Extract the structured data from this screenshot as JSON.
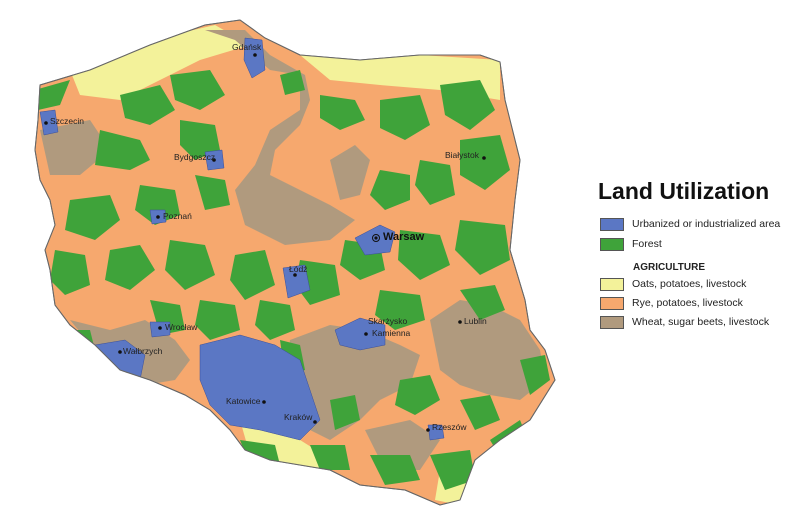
{
  "legend": {
    "title": "Land Utilization",
    "urban": {
      "label": "Urbanized or industrialized area",
      "color": "#5b77c4"
    },
    "forest": {
      "label": "Forest",
      "color": "#3fa33a"
    },
    "agriculture_heading": "AGRICULTURE",
    "oats": {
      "label": "Oats, potatoes, livestock",
      "color": "#f3f29a"
    },
    "rye": {
      "label": "Rye, potatoes, livestock",
      "color": "#f6a86e"
    },
    "wheat": {
      "label": "Wheat, sugar beets, livestock",
      "color": "#b09a7e"
    }
  },
  "cities": {
    "gdansk": "Gdańsk",
    "szczecin": "Szczecin",
    "bydgoszcz": "Bydgoszcz",
    "bialystok": "Białystok",
    "poznan": "Poznań",
    "warsaw": "Warsaw",
    "lodz": "Łódź",
    "wroclaw": "Wrocław",
    "walbrzych": "Wałbrzych",
    "skarzysko": "Skarżysko",
    "kamienna": "Kamienna",
    "lublin": "Lublin",
    "katowice": "Katowice",
    "krakow": "Kraków",
    "rzeszow": "Rzeszów"
  }
}
